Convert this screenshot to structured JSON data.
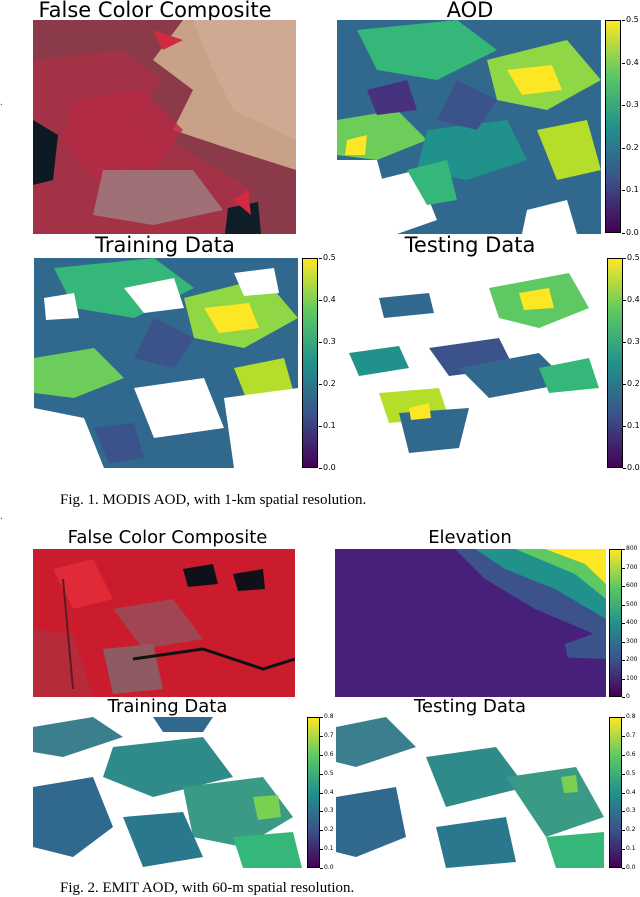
{
  "figure1": {
    "panels": {
      "false_color": "False Color Composite",
      "aod": "AOD",
      "training": "Training Data",
      "testing": "Testing Data"
    },
    "colorbar_ticks": [
      "0.5",
      "0.4",
      "0.3",
      "0.2",
      "0.1",
      "0.0"
    ],
    "caption": "Fig. 1.   MODIS AOD, with 1-km spatial resolution."
  },
  "figure2": {
    "panels": {
      "false_color": "False Color Composite",
      "elevation": "Elevation",
      "training": "Training Data",
      "testing": "Testing Data"
    },
    "elevation_ticks": [
      "800",
      "700",
      "600",
      "500",
      "400",
      "300",
      "200",
      "100",
      "0"
    ],
    "aod_ticks": [
      "0.8",
      "0.7",
      "0.6",
      "0.5",
      "0.4",
      "0.3",
      "0.2",
      "0.1",
      "0.0"
    ],
    "caption": "Fig. 2.   EMIT AOD, with 60-m spatial resolution."
  },
  "colors": {
    "viridis_low": "#440154",
    "viridis_mid": "#21918c",
    "viridis_high": "#fde725",
    "false_color_red": "#c0203a"
  }
}
